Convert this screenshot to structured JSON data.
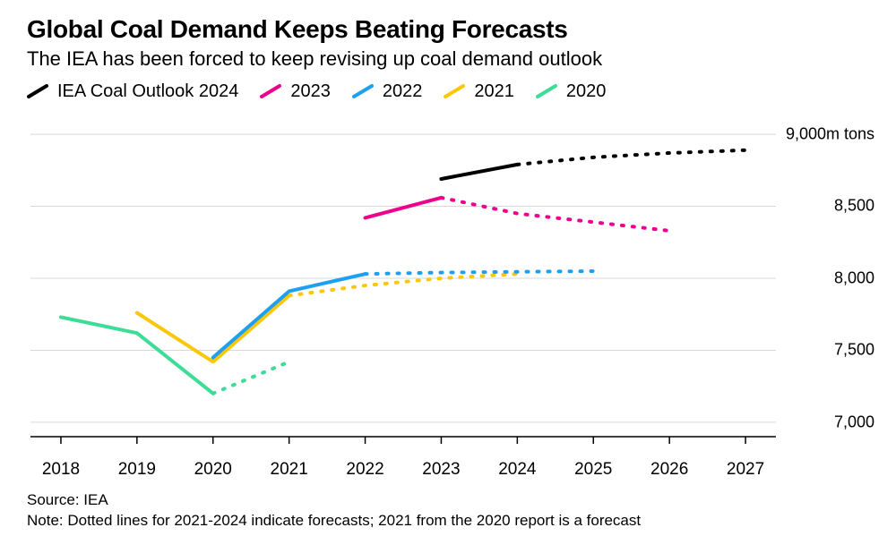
{
  "title": "Global Coal Demand Keeps Beating Forecasts",
  "subtitle": "The IEA has been forced to keep revising up coal demand outlook",
  "source": "Source: IEA",
  "note": "Note: Dotted lines for 2021-2024 indicate forecasts; 2021 from the 2020 report is a forecast",
  "chart": {
    "type": "line",
    "background_color": "#ffffff",
    "grid_color": "#d9d9d9",
    "axis_color": "#000000",
    "title_fontsize": 28,
    "subtitle_fontsize": 22,
    "legend_fontsize": 20,
    "axis_label_fontsize": 19,
    "line_width": 4,
    "dash_pattern": "2 10",
    "xlim": [
      2017.6,
      2027.4
    ],
    "ylim": [
      6900,
      9100
    ],
    "x_ticks": [
      2018,
      2019,
      2020,
      2021,
      2022,
      2023,
      2024,
      2025,
      2026,
      2027
    ],
    "y_ticks": [
      {
        "value": 7000,
        "label": "7,000"
      },
      {
        "value": 7500,
        "label": "7,500"
      },
      {
        "value": 8000,
        "label": "8,000"
      },
      {
        "value": 8500,
        "label": "8,500"
      },
      {
        "value": 9000,
        "label": "9,000m tons"
      }
    ],
    "legend": [
      {
        "label": "IEA Coal Outlook 2024",
        "color": "#000000"
      },
      {
        "label": "2023",
        "color": "#ec008c"
      },
      {
        "label": "2022",
        "color": "#1ea0f2"
      },
      {
        "label": "2021",
        "color": "#f9c80e"
      },
      {
        "label": "2020",
        "color": "#3ddc97"
      }
    ],
    "series": [
      {
        "name": "2020",
        "color": "#3ddc97",
        "solid": {
          "x": [
            2018,
            2019,
            2020
          ],
          "y": [
            7730,
            7620,
            7200
          ]
        },
        "dashed": {
          "x": [
            2020,
            2021
          ],
          "y": [
            7200,
            7420
          ]
        }
      },
      {
        "name": "2021",
        "color": "#f9c80e",
        "solid": {
          "x": [
            2019,
            2020,
            2021
          ],
          "y": [
            7760,
            7420,
            7880
          ]
        },
        "dashed": {
          "x": [
            2021,
            2022,
            2023,
            2024
          ],
          "y": [
            7880,
            7950,
            8000,
            8030
          ]
        }
      },
      {
        "name": "2022",
        "color": "#1ea0f2",
        "solid": {
          "x": [
            2020,
            2021,
            2022
          ],
          "y": [
            7450,
            7910,
            8030
          ]
        },
        "dashed": {
          "x": [
            2022,
            2023,
            2024,
            2025
          ],
          "y": [
            8030,
            8040,
            8045,
            8050
          ]
        }
      },
      {
        "name": "2023",
        "color": "#ec008c",
        "solid": {
          "x": [
            2022,
            2023
          ],
          "y": [
            8420,
            8560
          ]
        },
        "dashed": {
          "x": [
            2023,
            2024,
            2025,
            2026
          ],
          "y": [
            8560,
            8450,
            8390,
            8330
          ]
        }
      },
      {
        "name": "IEA Coal Outlook 2024",
        "color": "#000000",
        "solid": {
          "x": [
            2023,
            2024
          ],
          "y": [
            8690,
            8790
          ]
        },
        "dashed": {
          "x": [
            2024,
            2025,
            2026,
            2027
          ],
          "y": [
            8790,
            8840,
            8870,
            8890
          ]
        }
      }
    ]
  }
}
